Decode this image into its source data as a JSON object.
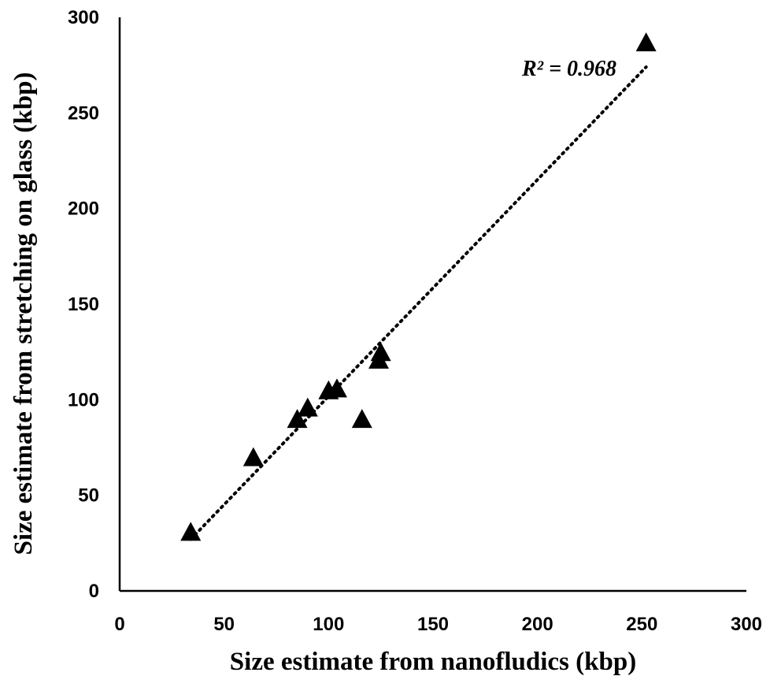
{
  "chart_data": {
    "type": "scatter",
    "xlabel": "Size estimate from nanofludics (kbp)",
    "ylabel": "Size estimate from stretching on glass (kbp)",
    "xlim": [
      0,
      300
    ],
    "ylim": [
      0,
      300
    ],
    "xticks": [
      "0",
      "50",
      "100",
      "150",
      "200",
      "250",
      "300"
    ],
    "yticks": [
      "0",
      "50",
      "100",
      "150",
      "200",
      "250",
      "300"
    ],
    "grid": false,
    "marker": "triangle",
    "points": [
      {
        "x": 34,
        "y": 30
      },
      {
        "x": 64,
        "y": 69
      },
      {
        "x": 85,
        "y": 89
      },
      {
        "x": 90,
        "y": 95
      },
      {
        "x": 100,
        "y": 104
      },
      {
        "x": 104,
        "y": 105
      },
      {
        "x": 116,
        "y": 89
      },
      {
        "x": 124,
        "y": 120
      },
      {
        "x": 125,
        "y": 124
      },
      {
        "x": 252,
        "y": 286
      }
    ],
    "trendline": {
      "style": "dotted",
      "x": [
        34,
        252
      ],
      "y": [
        27,
        274
      ]
    },
    "annotation": "R² = 0.968"
  }
}
